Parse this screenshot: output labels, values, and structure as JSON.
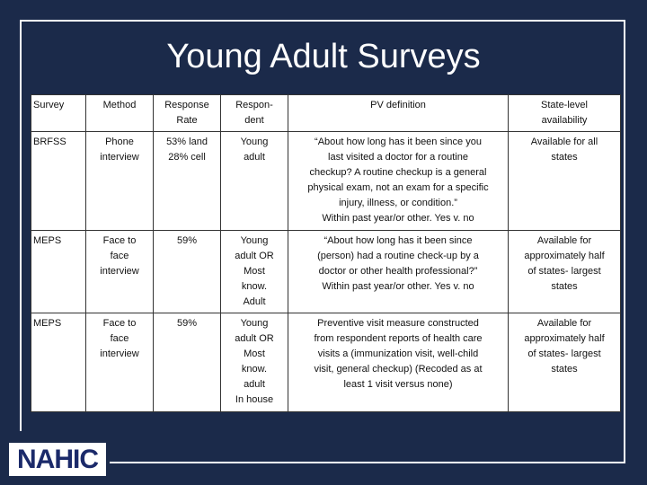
{
  "title": "Young Adult Surveys",
  "logo": "NAHIC",
  "table": {
    "header": [
      "Survey",
      "Method",
      "Response\nRate",
      "Respon-\ndent",
      "PV definition",
      "State-level\navailability"
    ],
    "rows": [
      [
        "BRFSS",
        "Phone\ninterview",
        "53% land\n28% cell",
        "Young\nadult",
        "“About how long has it been since you\nlast visited a doctor for a routine\ncheckup? A routine checkup is a general\nphysical exam, not an exam for a specific\ninjury, illness, or condition.”\nWithin past year/or other. Yes v. no",
        "Available for all\nstates"
      ],
      [
        "MEPS",
        "Face to\nface\ninterview",
        "59%",
        "Young\nadult OR\nMost\nknow.\nAdult",
        "“About how long has it been since\n(person) had a routine check-up by a\ndoctor or other health professional?”\nWithin past year/or other. Yes v. no",
        "Available for\napproximately half\nof states- largest\nstates"
      ],
      [
        "MEPS",
        "Face to\nface\ninterview",
        "59%",
        "Young\nadult OR\nMost\nknow.\nadult\nIn house",
        "Preventive visit measure constructed\nfrom respondent reports of health care\nvisits a (immunization visit, well-child\nvisit, general checkup) (Recoded as at\nleast 1 visit versus none)",
        "Available for\napproximately half\nof states- largest\nstates"
      ]
    ]
  }
}
